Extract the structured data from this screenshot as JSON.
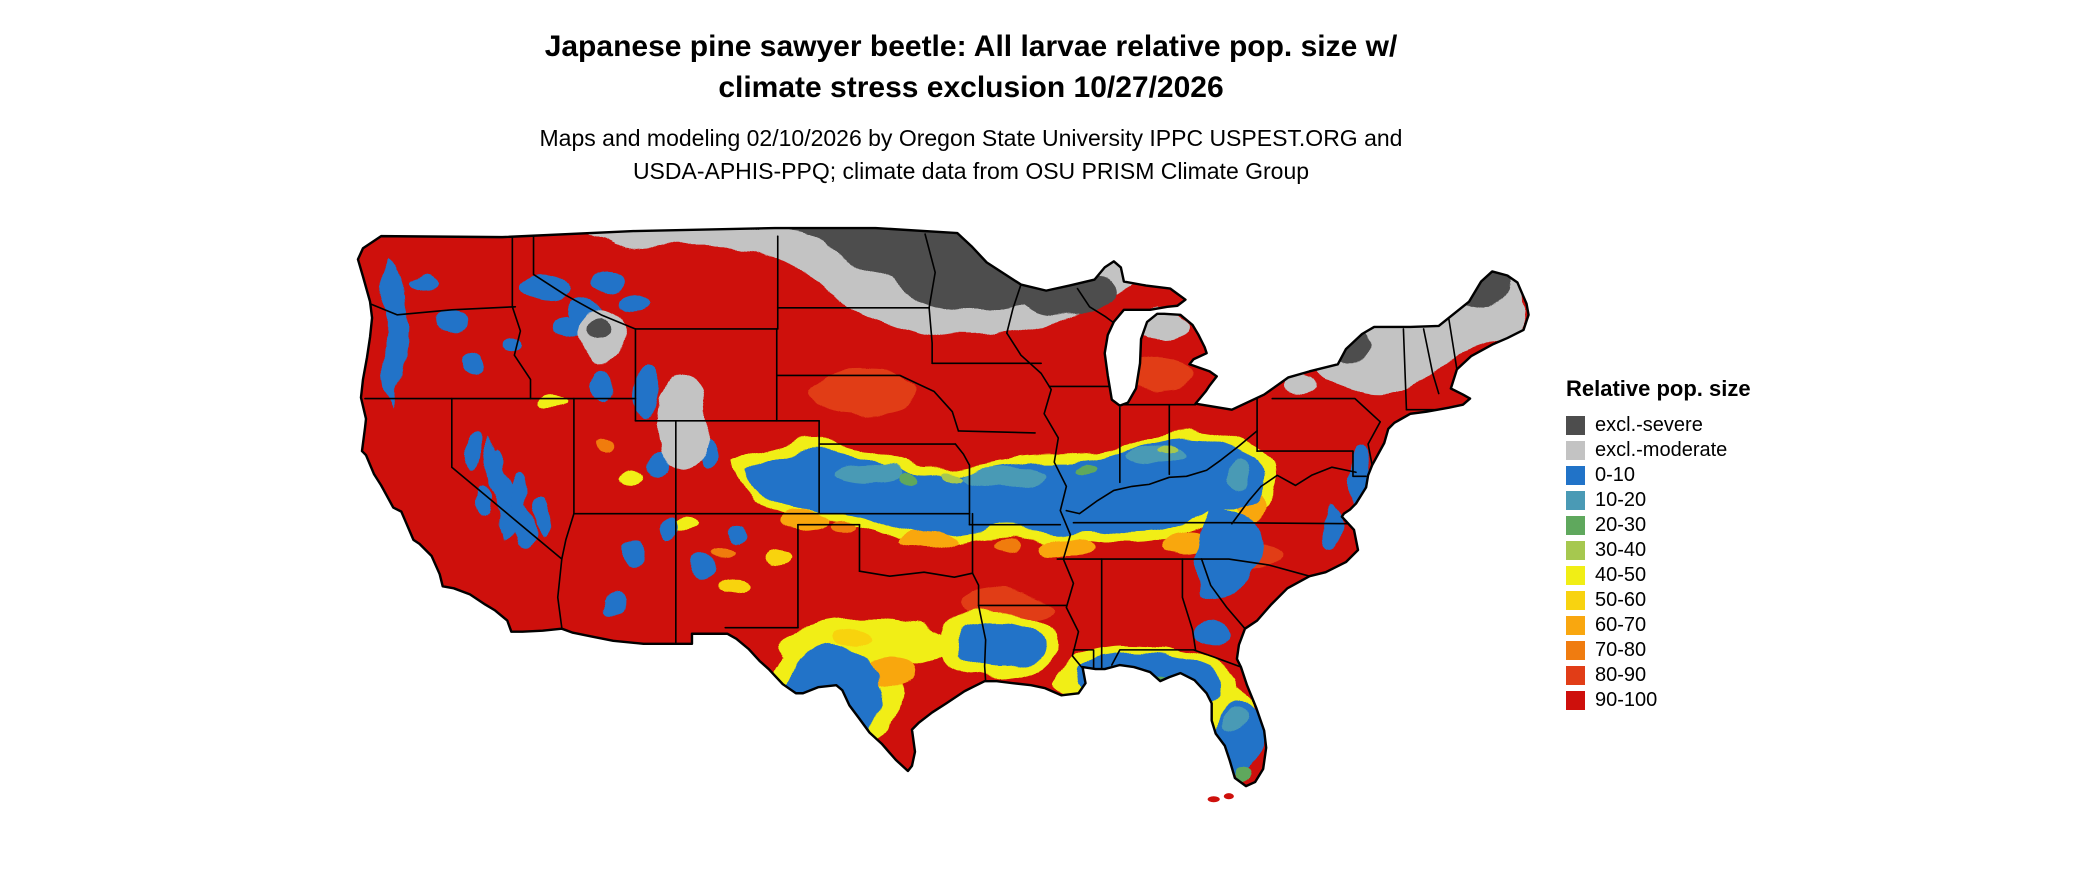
{
  "page": {
    "background": "#ffffff"
  },
  "header": {
    "title_line1": "Japanese pine sawyer beetle: All larvae relative pop. size w/",
    "title_line2": "climate stress exclusion 10/27/2026",
    "subtitle_line1": "Maps and modeling 02/10/2026 by Oregon State University IPPC USPEST.ORG and",
    "subtitle_line2": "USDA-APHIS-PPQ; climate data from OSU PRISM Climate Group"
  },
  "legend": {
    "title": "Relative pop. size",
    "items": [
      {
        "label": "excl.-severe",
        "color": "#4d4d4d"
      },
      {
        "label": "excl.-moderate",
        "color": "#c3c3c3"
      },
      {
        "label": "0-10",
        "color": "#2173c8"
      },
      {
        "label": "10-20",
        "color": "#4a9ab5"
      },
      {
        "label": "20-30",
        "color": "#5fa85d"
      },
      {
        "label": "30-40",
        "color": "#a6c84f"
      },
      {
        "label": "40-50",
        "color": "#f1ee15"
      },
      {
        "label": "50-60",
        "color": "#f8d310"
      },
      {
        "label": "60-70",
        "color": "#f9a70f"
      },
      {
        "label": "70-80",
        "color": "#f07c10"
      },
      {
        "label": "80-90",
        "color": "#e13d17"
      },
      {
        "label": "90-100",
        "color": "#ce100c"
      }
    ]
  },
  "map": {
    "region": "Contiguous United States",
    "border_color": "#000000",
    "dominant_class": "90-100"
  }
}
